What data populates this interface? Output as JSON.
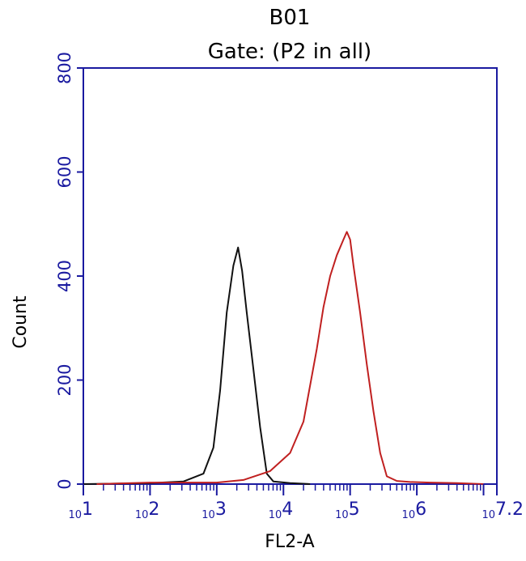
{
  "chart_data": {
    "type": "line",
    "title": "B01",
    "subtitle": "Gate: (P2 in all)",
    "xlabel": "FL2-A",
    "ylabel": "Count",
    "x_scale": "log",
    "xlim": [
      1,
      7.2
    ],
    "ylim": [
      0,
      800
    ],
    "y_ticks": [
      "0",
      "200",
      "400",
      "600",
      "800"
    ],
    "x_ticks": [
      {
        "base": "10",
        "exp": "1"
      },
      {
        "base": "10",
        "exp": "2"
      },
      {
        "base": "10",
        "exp": "3"
      },
      {
        "base": "10",
        "exp": "4"
      },
      {
        "base": "10",
        "exp": "5"
      },
      {
        "base": "10",
        "exp": "6"
      },
      {
        "base": "10",
        "exp": "7.2"
      }
    ],
    "grid": false,
    "series": [
      {
        "color": "#111111",
        "x": [
          1.0,
          2.0,
          2.5,
          2.8,
          2.95,
          3.05,
          3.15,
          3.25,
          3.32,
          3.38,
          3.45,
          3.55,
          3.65,
          3.75,
          3.85,
          4.1,
          4.4
        ],
        "y": [
          0,
          2,
          5,
          20,
          70,
          180,
          330,
          420,
          455,
          410,
          330,
          220,
          110,
          20,
          5,
          2,
          0
        ]
      },
      {
        "color": "#c02020",
        "x": [
          1.2,
          2.0,
          3.0,
          3.4,
          3.8,
          4.1,
          4.3,
          4.5,
          4.6,
          4.7,
          4.8,
          4.9,
          4.95,
          5.0,
          5.05,
          5.15,
          5.25,
          5.35,
          5.45,
          5.55,
          5.7,
          5.9,
          6.2,
          6.6,
          7.0
        ],
        "y": [
          0,
          3,
          3,
          8,
          25,
          60,
          120,
          260,
          340,
          400,
          440,
          470,
          485,
          470,
          420,
          330,
          230,
          140,
          60,
          15,
          6,
          4,
          3,
          2,
          0
        ]
      }
    ]
  }
}
